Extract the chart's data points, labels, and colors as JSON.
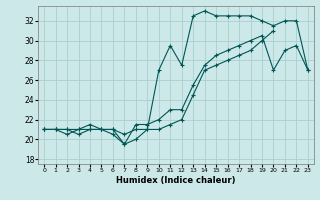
{
  "xlabel": "Humidex (Indice chaleur)",
  "bg_color": "#cce8e8",
  "grid_color": "#aacece",
  "line_color": "#005555",
  "xlim": [
    -0.5,
    23.5
  ],
  "ylim": [
    17.5,
    33.5
  ],
  "xticks": [
    0,
    1,
    2,
    3,
    4,
    5,
    6,
    7,
    8,
    9,
    10,
    11,
    12,
    13,
    14,
    15,
    16,
    17,
    18,
    19,
    20,
    21,
    22,
    23
  ],
  "yticks": [
    18,
    20,
    22,
    24,
    26,
    28,
    30,
    32
  ],
  "line1_x": [
    0,
    1,
    2,
    3,
    4,
    5,
    6,
    7,
    8,
    9,
    10,
    11,
    12,
    13,
    14,
    15,
    16,
    17,
    18,
    19,
    20,
    21,
    22,
    23
  ],
  "line1_y": [
    21,
    21,
    21,
    21,
    21,
    21,
    21,
    20.5,
    21,
    21,
    27,
    29.5,
    27.5,
    32.5,
    33,
    32.5,
    32.5,
    32.5,
    32.5,
    32,
    31.5,
    32,
    32,
    27
  ],
  "line2_x": [
    0,
    1,
    2,
    3,
    4,
    5,
    6,
    7,
    8,
    9,
    10,
    11,
    12,
    13,
    14,
    15,
    16,
    17,
    18,
    19,
    20,
    21,
    22,
    23
  ],
  "line2_y": [
    21,
    21,
    21,
    20.5,
    21,
    21,
    20.5,
    19.5,
    20,
    21,
    21,
    21.5,
    22,
    24.5,
    27,
    27.5,
    28,
    28.5,
    29,
    30,
    31,
    null,
    null,
    null
  ],
  "line3_x": [
    0,
    1,
    2,
    3,
    4,
    5,
    6,
    7,
    8,
    9,
    10,
    11,
    12,
    13,
    14,
    15,
    16,
    17,
    18,
    19,
    20,
    21,
    22,
    23
  ],
  "line3_y": [
    21,
    21,
    20.5,
    21,
    21.5,
    21,
    21,
    19.5,
    21.5,
    21.5,
    22,
    23,
    23,
    25.5,
    27.5,
    28.5,
    29,
    29.5,
    30,
    30.5,
    27,
    29,
    29.5,
    27
  ]
}
